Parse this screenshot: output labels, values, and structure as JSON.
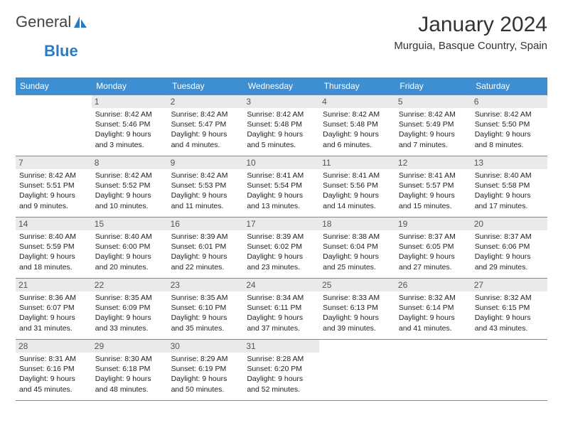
{
  "logo": {
    "part1": "General",
    "part2": "Blue"
  },
  "title": "January 2024",
  "location": "Murguia, Basque Country, Spain",
  "colors": {
    "header_bg": "#3d8fd1",
    "header_text": "#ffffff",
    "daynum_bg": "#e9eaeb",
    "cell_border": "#4d98d4",
    "logo_blue": "#2b7cc4"
  },
  "weekdays": [
    "Sunday",
    "Monday",
    "Tuesday",
    "Wednesday",
    "Thursday",
    "Friday",
    "Saturday"
  ],
  "start_offset": 1,
  "days": [
    {
      "n": 1,
      "sunrise": "8:42 AM",
      "sunset": "5:46 PM",
      "daylight": "9 hours and 3 minutes."
    },
    {
      "n": 2,
      "sunrise": "8:42 AM",
      "sunset": "5:47 PM",
      "daylight": "9 hours and 4 minutes."
    },
    {
      "n": 3,
      "sunrise": "8:42 AM",
      "sunset": "5:48 PM",
      "daylight": "9 hours and 5 minutes."
    },
    {
      "n": 4,
      "sunrise": "8:42 AM",
      "sunset": "5:48 PM",
      "daylight": "9 hours and 6 minutes."
    },
    {
      "n": 5,
      "sunrise": "8:42 AM",
      "sunset": "5:49 PM",
      "daylight": "9 hours and 7 minutes."
    },
    {
      "n": 6,
      "sunrise": "8:42 AM",
      "sunset": "5:50 PM",
      "daylight": "9 hours and 8 minutes."
    },
    {
      "n": 7,
      "sunrise": "8:42 AM",
      "sunset": "5:51 PM",
      "daylight": "9 hours and 9 minutes."
    },
    {
      "n": 8,
      "sunrise": "8:42 AM",
      "sunset": "5:52 PM",
      "daylight": "9 hours and 10 minutes."
    },
    {
      "n": 9,
      "sunrise": "8:42 AM",
      "sunset": "5:53 PM",
      "daylight": "9 hours and 11 minutes."
    },
    {
      "n": 10,
      "sunrise": "8:41 AM",
      "sunset": "5:54 PM",
      "daylight": "9 hours and 13 minutes."
    },
    {
      "n": 11,
      "sunrise": "8:41 AM",
      "sunset": "5:56 PM",
      "daylight": "9 hours and 14 minutes."
    },
    {
      "n": 12,
      "sunrise": "8:41 AM",
      "sunset": "5:57 PM",
      "daylight": "9 hours and 15 minutes."
    },
    {
      "n": 13,
      "sunrise": "8:40 AM",
      "sunset": "5:58 PM",
      "daylight": "9 hours and 17 minutes."
    },
    {
      "n": 14,
      "sunrise": "8:40 AM",
      "sunset": "5:59 PM",
      "daylight": "9 hours and 18 minutes."
    },
    {
      "n": 15,
      "sunrise": "8:40 AM",
      "sunset": "6:00 PM",
      "daylight": "9 hours and 20 minutes."
    },
    {
      "n": 16,
      "sunrise": "8:39 AM",
      "sunset": "6:01 PM",
      "daylight": "9 hours and 22 minutes."
    },
    {
      "n": 17,
      "sunrise": "8:39 AM",
      "sunset": "6:02 PM",
      "daylight": "9 hours and 23 minutes."
    },
    {
      "n": 18,
      "sunrise": "8:38 AM",
      "sunset": "6:04 PM",
      "daylight": "9 hours and 25 minutes."
    },
    {
      "n": 19,
      "sunrise": "8:37 AM",
      "sunset": "6:05 PM",
      "daylight": "9 hours and 27 minutes."
    },
    {
      "n": 20,
      "sunrise": "8:37 AM",
      "sunset": "6:06 PM",
      "daylight": "9 hours and 29 minutes."
    },
    {
      "n": 21,
      "sunrise": "8:36 AM",
      "sunset": "6:07 PM",
      "daylight": "9 hours and 31 minutes."
    },
    {
      "n": 22,
      "sunrise": "8:35 AM",
      "sunset": "6:09 PM",
      "daylight": "9 hours and 33 minutes."
    },
    {
      "n": 23,
      "sunrise": "8:35 AM",
      "sunset": "6:10 PM",
      "daylight": "9 hours and 35 minutes."
    },
    {
      "n": 24,
      "sunrise": "8:34 AM",
      "sunset": "6:11 PM",
      "daylight": "9 hours and 37 minutes."
    },
    {
      "n": 25,
      "sunrise": "8:33 AM",
      "sunset": "6:13 PM",
      "daylight": "9 hours and 39 minutes."
    },
    {
      "n": 26,
      "sunrise": "8:32 AM",
      "sunset": "6:14 PM",
      "daylight": "9 hours and 41 minutes."
    },
    {
      "n": 27,
      "sunrise": "8:32 AM",
      "sunset": "6:15 PM",
      "daylight": "9 hours and 43 minutes."
    },
    {
      "n": 28,
      "sunrise": "8:31 AM",
      "sunset": "6:16 PM",
      "daylight": "9 hours and 45 minutes."
    },
    {
      "n": 29,
      "sunrise": "8:30 AM",
      "sunset": "6:18 PM",
      "daylight": "9 hours and 48 minutes."
    },
    {
      "n": 30,
      "sunrise": "8:29 AM",
      "sunset": "6:19 PM",
      "daylight": "9 hours and 50 minutes."
    },
    {
      "n": 31,
      "sunrise": "8:28 AM",
      "sunset": "6:20 PM",
      "daylight": "9 hours and 52 minutes."
    }
  ],
  "labels": {
    "sunrise": "Sunrise:",
    "sunset": "Sunset:",
    "daylight": "Daylight:"
  }
}
